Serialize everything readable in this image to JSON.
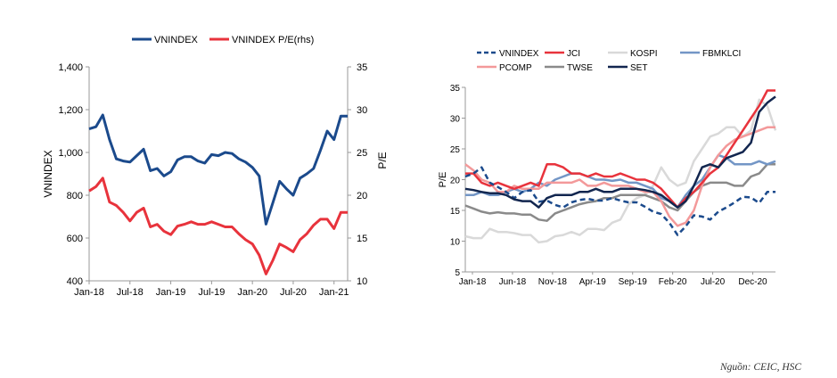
{
  "colors": {
    "navy": "#1b4a8c",
    "red": "#e8333c",
    "lightgray": "#d9d9d9",
    "steel": "#7396c6",
    "pink": "#f3999a",
    "gray": "#8a8a8a",
    "darknavy": "#12264f"
  },
  "chart_data": [
    {
      "type": "line",
      "legend": [
        "VNINDEX",
        "VNINDEX P/E(rhs)"
      ],
      "ylabel": "VNINDEX",
      "y2label": "P/E",
      "ylim": [
        400,
        1400
      ],
      "y2lim": [
        10,
        35
      ],
      "yticks": [
        "400",
        "600",
        "800",
        "1,000",
        "1,200",
        "1,400"
      ],
      "y2ticks": [
        "10",
        "15",
        "20",
        "25",
        "30",
        "35"
      ],
      "xticks": [
        "Jan-18",
        "Jul-18",
        "Jan-19",
        "Jul-19",
        "Jan-20",
        "Jul-20",
        "Jan-21"
      ],
      "series": [
        {
          "name": "VNINDEX",
          "axis": "left",
          "values": [
            1110,
            1120,
            1175,
            1060,
            970,
            960,
            955,
            985,
            1015,
            915,
            925,
            890,
            910,
            965,
            980,
            980,
            960,
            950,
            990,
            985,
            1000,
            995,
            970,
            955,
            930,
            890,
            665,
            765,
            865,
            830,
            800,
            880,
            900,
            925,
            1010,
            1100,
            1060,
            1170,
            1170
          ]
        },
        {
          "name": "VNINDEX P/E(rhs)",
          "axis": "right",
          "values": [
            20.5,
            21,
            22,
            19.2,
            18.8,
            18,
            17,
            18,
            18.5,
            16.3,
            16.6,
            15.8,
            15.4,
            16.4,
            16.6,
            16.9,
            16.6,
            16.6,
            16.9,
            16.6,
            16.3,
            16.3,
            15.5,
            14.8,
            14.3,
            13,
            10.8,
            12.4,
            14.3,
            13.9,
            13.4,
            14.8,
            15.5,
            16.5,
            17.2,
            17.2,
            16.1,
            18,
            18
          ]
        }
      ]
    },
    {
      "type": "line",
      "legend": [
        "VNINDEX",
        "JCI",
        "KOSPI",
        "FBMKLCI",
        "PCOMP",
        "TWSE",
        "SET"
      ],
      "ylabel": "P/E",
      "ylim": [
        5,
        35
      ],
      "yticks": [
        "5",
        "10",
        "15",
        "20",
        "25",
        "30",
        "35"
      ],
      "xticks": [
        "Jan-18",
        "Jun-18",
        "Nov-18",
        "Apr-19",
        "Sep-19",
        "Feb-20",
        "Jul-20",
        "Dec-20"
      ],
      "series": [
        {
          "name": "VNINDEX",
          "dashed": true,
          "values": [
            20.5,
            21,
            22,
            19.5,
            18.8,
            18,
            17,
            18,
            18.3,
            16.4,
            16.6,
            15.9,
            15.5,
            16.3,
            16.7,
            16.9,
            16.6,
            16.6,
            17,
            16.6,
            16.3,
            16.3,
            15.6,
            14.8,
            14.4,
            13,
            11,
            12.4,
            14.2,
            14,
            13.5,
            14.8,
            15.5,
            16.3,
            17.2,
            17.1,
            16.2,
            18,
            18
          ]
        },
        {
          "name": "JCI",
          "values": [
            21,
            21,
            19.5,
            19,
            19.5,
            19,
            18.5,
            19,
            19.5,
            19,
            22.5,
            22.5,
            22,
            21,
            21,
            20.5,
            21,
            20.5,
            20.5,
            21,
            20.5,
            20,
            20,
            19.5,
            18.5,
            17,
            15.5,
            17,
            18,
            19.5,
            21,
            22,
            24,
            26,
            28,
            30,
            32,
            34.5,
            34.5
          ]
        },
        {
          "name": "KOSPI",
          "values": [
            10.8,
            10.5,
            10.5,
            12,
            11.5,
            11.5,
            11.3,
            11,
            11,
            9.8,
            10,
            10.8,
            11,
            11.5,
            11,
            12,
            12,
            11.8,
            13,
            13.5,
            16,
            17,
            17.5,
            19,
            22,
            20,
            19,
            19.5,
            23,
            25,
            27,
            27.5,
            28.5,
            28.5,
            27,
            28,
            33,
            32,
            28
          ]
        },
        {
          "name": "FBMKLCI",
          "values": [
            17.5,
            17.5,
            18,
            17.5,
            17.5,
            18,
            18.5,
            18,
            18.5,
            19.5,
            19,
            20,
            20.5,
            21,
            21,
            20.5,
            20,
            20,
            19.8,
            20,
            19.5,
            19.5,
            19,
            18.5,
            17,
            16.5,
            15.5,
            17.5,
            19,
            20,
            22,
            24,
            23.5,
            22.5,
            22.5,
            22.5,
            23,
            22.5,
            23
          ]
        },
        {
          "name": "PCOMP",
          "values": [
            22.5,
            21.5,
            20,
            19.5,
            18,
            18,
            19,
            18.5,
            18.5,
            18.5,
            19.5,
            19.5,
            19.5,
            19.5,
            20,
            19,
            19,
            19.5,
            19,
            19,
            19,
            18.5,
            18,
            18,
            16.5,
            14,
            12.5,
            13,
            15,
            19,
            22,
            24,
            25.5,
            26.5,
            27,
            27.5,
            28,
            28.5,
            28.5
          ]
        },
        {
          "name": "TWSE",
          "values": [
            15.8,
            15.3,
            14.8,
            14.5,
            14.7,
            14.5,
            14.5,
            14.3,
            14.3,
            13.5,
            13.3,
            14.5,
            15,
            15.5,
            16,
            16.3,
            16.5,
            17,
            17,
            17.5,
            17.5,
            17.5,
            17.5,
            17,
            16.5,
            15.5,
            15,
            16.5,
            18,
            19,
            19.5,
            19.5,
            19.5,
            19,
            19,
            20.5,
            21,
            22.5,
            22.5
          ]
        },
        {
          "name": "SET",
          "values": [
            18.5,
            18.3,
            18,
            17.8,
            17.8,
            17.5,
            16.8,
            16.5,
            16.5,
            15.5,
            17,
            17.5,
            17.5,
            17.5,
            18,
            18,
            18.5,
            18,
            18,
            18.5,
            18.5,
            18.5,
            18.3,
            18,
            17.5,
            16.5,
            15.5,
            16.5,
            19,
            22,
            22.5,
            22,
            23.5,
            24,
            24.5,
            26,
            31,
            32.5,
            33.5
          ]
        }
      ]
    }
  ],
  "source_note": "Nguồn: CEIC, HSC"
}
